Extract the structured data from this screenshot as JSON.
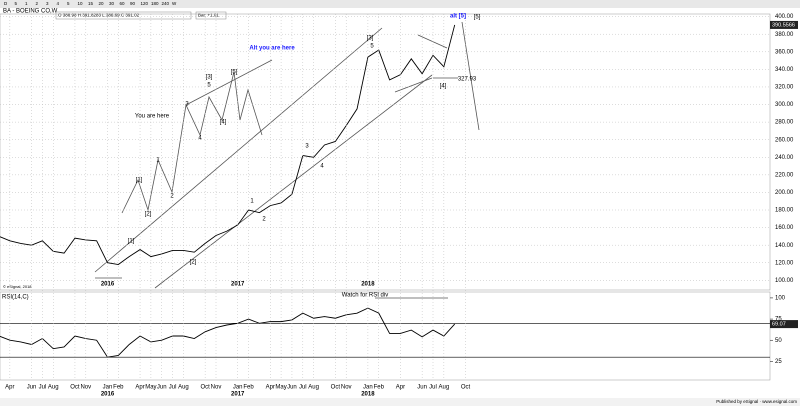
{
  "toolbar": [
    "D",
    "5",
    "1",
    "2",
    "3",
    "4",
    "5",
    "10",
    "15",
    "20",
    "30",
    "60",
    "90",
    "120",
    "180",
    "240",
    "W"
  ],
  "header": {
    "symbol": "BA - BOEING CO,W",
    "quote": "O 388.98  H 391.8283  L 386.69  C 391.02",
    "change": "Bar: +1.01"
  },
  "footer": "Published by eSignal · www.esignal.com",
  "copyright": "© eSignal, 2018",
  "chart_data": [
    {
      "type": "line",
      "title": "BA - BOEING CO,W",
      "color": "#000000",
      "grid": true,
      "categories": [
        null,
        "Apr",
        null,
        "Jun",
        "Jul",
        "Aug",
        null,
        "Oct",
        "Nov",
        null,
        "Jan",
        "Feb",
        null,
        "Apr",
        "May",
        "Jun",
        "Jul",
        "Aug",
        null,
        "Oct",
        "Nov",
        null,
        "Jan",
        "Feb",
        null,
        "Apr",
        "May",
        "Jun",
        "Jul",
        "Aug",
        null,
        "Oct",
        "Nov",
        null,
        "Jan",
        "Feb",
        null,
        "Apr",
        null,
        "Jun",
        "Jul",
        "Aug",
        null,
        "Oct"
      ],
      "years": [
        "2016",
        "2017",
        "2018"
      ],
      "values": [
        150,
        145,
        142,
        140,
        145,
        133,
        131,
        148,
        146,
        145,
        120,
        118,
        127,
        135,
        127,
        130,
        134,
        134,
        132,
        142,
        151,
        156,
        163,
        180,
        177,
        185,
        188,
        198,
        242,
        240,
        254,
        258,
        276,
        295,
        354,
        362,
        328,
        334,
        352,
        335,
        356,
        343,
        390.5566,
        null
      ],
      "value_labels": [
        null,
        null,
        null,
        null,
        null,
        null,
        null,
        null,
        null,
        null,
        null,
        null,
        null,
        null,
        null,
        null,
        null,
        null,
        null,
        null,
        null,
        null,
        null,
        null,
        null,
        null,
        null,
        null,
        null,
        null,
        null,
        null,
        null,
        null,
        null,
        null,
        null,
        null,
        null,
        null,
        null,
        null,
        "390.5566",
        null
      ],
      "ylim": [
        89,
        403
      ],
      "yticks": [
        {
          "value": 100,
          "label": "100.00"
        },
        {
          "value": 120,
          "label": "120.00"
        },
        {
          "value": 140,
          "label": "140.00"
        },
        {
          "value": 160,
          "label": "160.00"
        },
        {
          "value": 180,
          "label": "180.00"
        },
        {
          "value": 200,
          "label": "200.00"
        },
        {
          "value": 220,
          "label": "220.00"
        },
        {
          "value": 240,
          "label": "240.00"
        },
        {
          "value": 260,
          "label": "260.00"
        },
        {
          "value": 280,
          "label": "280.00"
        },
        {
          "value": 300,
          "label": "300.00"
        },
        {
          "value": 320,
          "label": "320.00"
        },
        {
          "value": 340,
          "label": "340.00"
        },
        {
          "value": 360,
          "label": "360.00"
        },
        {
          "value": 380,
          "label": "380.00"
        },
        {
          "value": 400,
          "label": "400.00"
        }
      ],
      "annotations": [
        "[1]",
        "[2]",
        "1",
        "2",
        "3",
        "4",
        "5",
        "[3]",
        "[4]",
        "[5]",
        "alt [5]",
        "You are here",
        "Alt you are here",
        "327.93",
        "[1]",
        "[2]",
        "1",
        "2",
        "3",
        "4",
        "[3]",
        "5",
        "[4]",
        "[5]"
      ]
    },
    {
      "type": "line",
      "title": "RSI(14,C)",
      "color": "#000000",
      "values": [
        55,
        50,
        48,
        45,
        52,
        40,
        42,
        55,
        52,
        50,
        30,
        32,
        45,
        55,
        48,
        50,
        55,
        55,
        52,
        60,
        65,
        68,
        70,
        75,
        70,
        72,
        72,
        74,
        82,
        76,
        78,
        76,
        80,
        82,
        88,
        82,
        58,
        58,
        62,
        54,
        62,
        55,
        69.07,
        null
      ],
      "value_labels": [
        null,
        null,
        null,
        null,
        null,
        null,
        null,
        null,
        null,
        null,
        null,
        null,
        null,
        null,
        null,
        null,
        null,
        null,
        null,
        null,
        null,
        null,
        null,
        null,
        null,
        null,
        null,
        null,
        null,
        null,
        null,
        null,
        null,
        null,
        null,
        null,
        null,
        null,
        null,
        null,
        null,
        null,
        "69.07",
        null
      ],
      "ylim": [
        3,
        107
      ],
      "yticks": [
        25,
        50,
        75,
        100
      ],
      "hlines": [
        70,
        30
      ],
      "annotations": [
        "Watch for RSI div"
      ]
    }
  ]
}
